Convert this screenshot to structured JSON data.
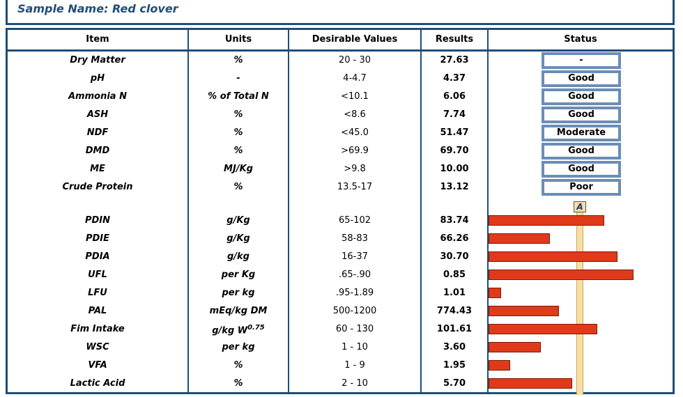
{
  "sample": {
    "label": "Sample Name: Red clover"
  },
  "headers": {
    "item": "Item",
    "units": "Units",
    "desirable": "Desirable Values",
    "results": "Results",
    "status": "Status"
  },
  "rows": [
    {
      "item": "Dry Matter",
      "units": "%",
      "desirable": "20 - 30",
      "result": "27.63",
      "status": "-"
    },
    {
      "item": "pH",
      "units": "-",
      "desirable": "4-4.7",
      "result": "4.37",
      "status": "Good"
    },
    {
      "item": "Ammonia N",
      "units": "% of Total N",
      "desirable": "<10.1",
      "result": "6.06",
      "status": "Good"
    },
    {
      "item": "ASH",
      "units": "%",
      "desirable": "<8.6",
      "result": "7.74",
      "status": "Good"
    },
    {
      "item": "NDF",
      "units": "%",
      "desirable": "<45.0",
      "result": "51.47",
      "status": "Moderate"
    },
    {
      "item": "DMD",
      "units": "%",
      "desirable": ">69.9",
      "result": "69.70",
      "status": "Good"
    },
    {
      "item": "ME",
      "units": "MJ/Kg",
      "desirable": ">9.8",
      "result": "10.00",
      "status": "Good"
    },
    {
      "item": "Crude Protein",
      "units": "%",
      "desirable": "13.5-17",
      "result": "13.12",
      "status": "Poor"
    },
    {
      "item": "PDIN",
      "units": "g/Kg",
      "desirable": "65-102",
      "result": "83.74",
      "level": 0.64
    },
    {
      "item": "PDIE",
      "units": "g/Kg",
      "desirable": "58-83",
      "result": "66.26",
      "level": 0.34
    },
    {
      "item": "PDIA",
      "units": "g/kg",
      "desirable": "16-37",
      "result": "30.70",
      "level": 0.71
    },
    {
      "item": "UFL",
      "units": "per Kg",
      "desirable": ".65-.90",
      "result": "0.85",
      "level": 0.8
    },
    {
      "item": "LFU",
      "units": "per kg",
      "desirable": ".95-1.89",
      "result": "1.01",
      "level": 0.07
    },
    {
      "item": "PAL",
      "units": "mEq/kg DM",
      "desirable": "500-1200",
      "result": "774.43",
      "level": 0.39
    },
    {
      "item": "Fim Intake",
      "units": "g/kg W",
      "units_sup": "0.75",
      "desirable": "60 - 130",
      "result": "101.61",
      "level": 0.6
    },
    {
      "item": "WSC",
      "units": "per kg",
      "desirable": "1 - 10",
      "result": "3.60",
      "level": 0.29
    },
    {
      "item": "VFA",
      "units": "%",
      "desirable": "1 - 9",
      "result": "1.95",
      "level": 0.12
    },
    {
      "item": "Lactic Acid",
      "units": "%",
      "desirable": "2 - 10",
      "result": "5.70",
      "level": 0.46
    }
  ],
  "bar_chart": {
    "target_label": "A",
    "bar_color": "#e03a1a",
    "target_color": "#f7dfa2"
  },
  "colors": {
    "border": "#1f4e79",
    "status_border": "#6b8db5"
  }
}
